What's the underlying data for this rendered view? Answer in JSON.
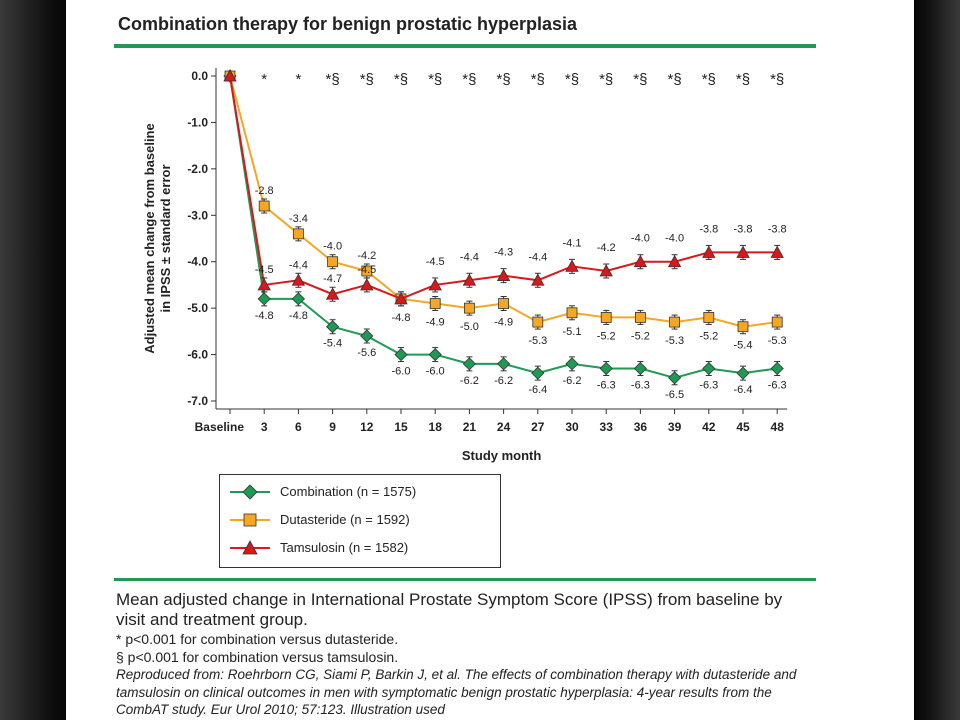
{
  "slide": {
    "title": "Combination therapy for benign prostatic hyperplasia",
    "caption_main": "Mean adjusted change in International Prostate Symptom Score (IPSS) from baseline by visit and treatment group.",
    "note_1": "* p<0.001 for combination versus dutasteride.",
    "note_2": "§ p<0.001 for combination versus tamsulosin.",
    "reference": "Reproduced from: Roehrborn CG, Siami P, Barkin J, et al. The effects of combination therapy with dutasteride and tamsulosin on clinical outcomes in men with symptomatic benign prostatic hyperplasia: 4-year results from the CombAT study. Eur Urol 2010; 57:123. Illustration used"
  },
  "colors": {
    "combination": "#1f9a55",
    "dutasteride": "#f5a623",
    "tamsulosin": "#d7191c",
    "rule": "#1f9a55"
  },
  "chart_data": {
    "type": "line",
    "xlabel": "Study month",
    "ylabel": "Adjusted mean change from baseline in IPSS ± standard error",
    "categories": [
      "Baseline",
      "3",
      "6",
      "9",
      "12",
      "15",
      "18",
      "21",
      "24",
      "27",
      "30",
      "33",
      "36",
      "39",
      "42",
      "45",
      "48"
    ],
    "ylim": [
      -7.0,
      0.0
    ],
    "yticks": [
      "0.0",
      "-1.0",
      "-2.0",
      "-3.0",
      "-4.0",
      "-5.0",
      "-6.0",
      "-7.0"
    ],
    "significance": [
      "",
      "*",
      "*",
      "*§",
      "*§",
      "*§",
      "*§",
      "*§",
      "*§",
      "*§",
      "*§",
      "*§",
      "*§",
      "*§",
      "*§",
      "*§",
      "*§"
    ],
    "series": [
      {
        "name": "Combination (n = 1575)",
        "key": "combination",
        "marker": "diamond",
        "values": [
          0.0,
          -4.8,
          -4.8,
          -5.4,
          -5.6,
          -6.0,
          -6.0,
          -6.2,
          -6.2,
          -6.4,
          -6.2,
          -6.3,
          -6.3,
          -6.5,
          -6.3,
          -6.4,
          -6.3
        ],
        "labels": [
          "",
          "-4.8",
          "-4.8",
          "-5.4",
          "-5.6",
          "-6.0",
          "-6.0",
          "-6.2",
          "-6.2",
          "-6.4",
          "-6.2",
          "-6.3",
          "-6.3",
          "-6.5",
          "-6.3",
          "-6.4",
          "-6.3"
        ]
      },
      {
        "name": "Dutasteride (n = 1592)",
        "key": "dutasteride",
        "marker": "square",
        "values": [
          0.0,
          -2.8,
          -3.4,
          -4.0,
          -4.2,
          -4.8,
          -4.9,
          -5.0,
          -4.9,
          -5.3,
          -5.1,
          -5.2,
          -5.2,
          -5.3,
          -5.2,
          -5.4,
          -5.3
        ],
        "labels": [
          "",
          "-2.8",
          "-3.4",
          "-4.0",
          "-4.2",
          "-4.8",
          "-4.9",
          "-5.0",
          "-4.9",
          "-5.3",
          "-5.1",
          "-5.2",
          "-5.2",
          "-5.3",
          "-5.2",
          "-5.4",
          "-5.3"
        ]
      },
      {
        "name": "Tamsulosin (n = 1582)",
        "key": "tamsulosin",
        "marker": "triangle",
        "values": [
          0.0,
          -4.5,
          -4.4,
          -4.7,
          -4.5,
          -4.8,
          -4.5,
          -4.4,
          -4.3,
          -4.4,
          -4.1,
          -4.2,
          -4.0,
          -4.0,
          -3.8,
          -3.8,
          -3.8
        ],
        "labels": [
          "",
          "-4.5",
          "-4.4",
          "-4.7",
          "-4.5",
          "",
          "-4.5",
          "-4.4",
          "-4.3",
          "-4.4",
          "-4.1",
          "-4.2",
          "-4.0",
          "-4.0",
          "-3.8",
          "-3.8",
          "-3.8"
        ]
      }
    ],
    "grid": false,
    "legend_position": "bottom-left"
  }
}
